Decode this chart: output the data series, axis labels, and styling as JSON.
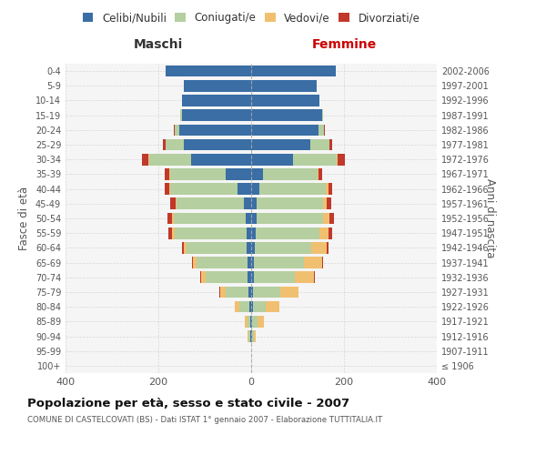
{
  "age_groups": [
    "100+",
    "95-99",
    "90-94",
    "85-89",
    "80-84",
    "75-79",
    "70-74",
    "65-69",
    "60-64",
    "55-59",
    "50-54",
    "45-49",
    "40-44",
    "35-39",
    "30-34",
    "25-29",
    "20-24",
    "15-19",
    "10-14",
    "5-9",
    "0-4"
  ],
  "birth_years": [
    "≤ 1906",
    "1907-1911",
    "1912-1916",
    "1917-1921",
    "1922-1926",
    "1927-1931",
    "1932-1936",
    "1937-1941",
    "1942-1946",
    "1947-1951",
    "1952-1956",
    "1957-1961",
    "1962-1966",
    "1967-1971",
    "1972-1976",
    "1977-1981",
    "1982-1986",
    "1987-1991",
    "1992-1996",
    "1997-2001",
    "2002-2006"
  ],
  "males_celibi": [
    0,
    0,
    2,
    2,
    4,
    5,
    8,
    8,
    10,
    10,
    12,
    15,
    30,
    55,
    130,
    145,
    155,
    150,
    150,
    145,
    185
  ],
  "males_coniugati": [
    0,
    0,
    3,
    6,
    22,
    50,
    90,
    110,
    130,
    155,
    155,
    145,
    145,
    120,
    90,
    40,
    10,
    2,
    0,
    0,
    0
  ],
  "males_vedovi": [
    0,
    0,
    2,
    5,
    10,
    12,
    10,
    8,
    5,
    5,
    3,
    2,
    2,
    1,
    1,
    0,
    0,
    0,
    0,
    0,
    0
  ],
  "males_divorziati": [
    0,
    0,
    0,
    0,
    0,
    1,
    2,
    2,
    5,
    8,
    10,
    12,
    10,
    10,
    15,
    5,
    2,
    0,
    0,
    0,
    0
  ],
  "females_nubili": [
    0,
    0,
    1,
    1,
    3,
    4,
    6,
    6,
    8,
    10,
    12,
    12,
    18,
    25,
    90,
    128,
    145,
    152,
    148,
    142,
    182
  ],
  "females_coniugate": [
    0,
    0,
    4,
    12,
    28,
    58,
    88,
    108,
    122,
    138,
    142,
    142,
    143,
    118,
    95,
    40,
    12,
    2,
    0,
    0,
    0
  ],
  "females_vedove": [
    0,
    0,
    5,
    15,
    30,
    40,
    42,
    38,
    32,
    18,
    14,
    8,
    5,
    3,
    2,
    1,
    0,
    0,
    0,
    0,
    0
  ],
  "females_divorziate": [
    0,
    0,
    0,
    0,
    0,
    0,
    1,
    2,
    5,
    8,
    10,
    10,
    8,
    7,
    15,
    5,
    2,
    0,
    0,
    0,
    0
  ],
  "color_celibi": "#3a6ea5",
  "color_coniugati": "#b5cfa0",
  "color_vedovi": "#f0c070",
  "color_divorziati": "#c0392b",
  "xlim": 400,
  "bg_color": "#f5f5f5",
  "grid_color": "#cccccc",
  "title": "Popolazione per età, sesso e stato civile - 2007",
  "subtitle": "COMUNE DI CASTELCOVATI (BS) - Dati ISTAT 1° gennaio 2007 - Elaborazione TUTTITALIA.IT",
  "label_maschi": "Maschi",
  "label_femmine": "Femmine",
  "label_fascedelta": "Fasce di età",
  "label_anninascita": "Anni di nascita",
  "legend_labels": [
    "Celibi/Nubili",
    "Coniugati/e",
    "Vedovi/e",
    "Divorziati/e"
  ]
}
